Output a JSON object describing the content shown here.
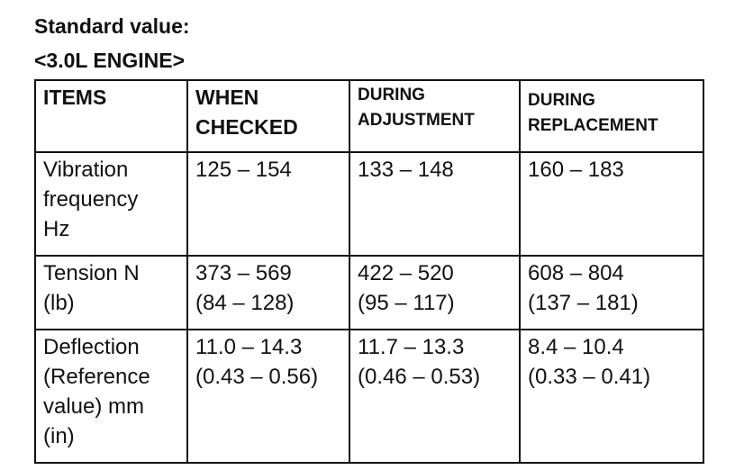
{
  "header": {
    "title": "Standard value:",
    "subtitle": "<3.0L ENGINE>"
  },
  "table": {
    "columns": [
      [
        "ITEMS"
      ],
      [
        "WHEN",
        "CHECKED"
      ],
      [
        "DURING",
        "ADJUSTMENT"
      ],
      [
        "DURING",
        "REPLACEMENT"
      ]
    ],
    "rows": [
      [
        [
          "Vibration",
          "frequency",
          "Hz"
        ],
        [
          "125 – 154"
        ],
        [
          "133 – 148"
        ],
        [
          "160 – 183"
        ]
      ],
      [
        [
          "Tension N",
          "(lb)"
        ],
        [
          "373 – 569",
          "(84 – 128)"
        ],
        [
          "422 – 520",
          "(95 – 117)"
        ],
        [
          "608 – 804",
          "(137 – 181)"
        ]
      ],
      [
        [
          "Deflection",
          "(Reference",
          "value) mm",
          "(in)"
        ],
        [
          "11.0 – 14.3",
          "(0.43 – 0.56)"
        ],
        [
          "11.7 – 13.3",
          "(0.46 – 0.53)"
        ],
        [
          "8.4 – 10.4",
          "(0.33 – 0.41)"
        ]
      ]
    ]
  }
}
